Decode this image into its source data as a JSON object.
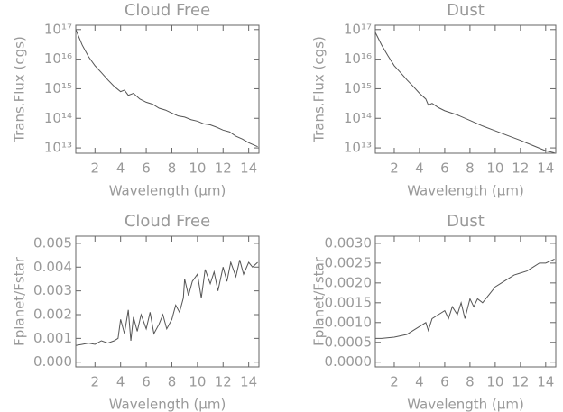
{
  "chart_data": [
    {
      "type": "line",
      "title": "Cloud Free",
      "x_label": "Wavelength (μm)",
      "y_label": "Trans.Flux (cgs)",
      "ylog": true,
      "color": "#555555",
      "xlim": [
        0.5,
        14.8
      ],
      "xticks": [
        2,
        4,
        6,
        8,
        10,
        12,
        14
      ],
      "ylim": [
        6600000000000.0,
        1.4e+17
      ],
      "yticks": [
        {
          "value": 10000000000000.0,
          "label": "10¹³"
        },
        {
          "value": 100000000000000.0,
          "label": "10¹⁴"
        },
        {
          "value": 1000000000000000.0,
          "label": "10¹⁵"
        },
        {
          "value": 1e+16,
          "label": "10¹⁶"
        },
        {
          "value": 1e+17,
          "label": "10¹⁷"
        }
      ],
      "x": [
        0.5,
        1,
        1.5,
        2,
        2.5,
        3,
        3.5,
        4,
        4.3,
        4.6,
        5,
        5.5,
        6,
        6.5,
        7,
        7.5,
        8,
        8.5,
        9,
        9.5,
        10,
        10.5,
        11,
        11.5,
        12,
        12.5,
        13,
        13.5,
        14,
        14.7
      ],
      "values": [
        1e+17,
        3e+16,
        1.2e+16,
        6000000000000000.0,
        3500000000000000.0,
        2000000000000000.0,
        1200000000000000.0,
        800000000000000.0,
        900000000000000.0,
        600000000000000.0,
        700000000000000.0,
        450000000000000.0,
        350000000000000.0,
        300000000000000.0,
        220000000000000.0,
        190000000000000.0,
        150000000000000.0,
        120000000000000.0,
        110000000000000.0,
        90000000000000.0,
        80000000000000.0,
        65000000000000.0,
        60000000000000.0,
        50000000000000.0,
        40000000000000.0,
        35000000000000.0,
        25000000000000.0,
        20000000000000.0,
        15000000000000.0,
        11000000000000.0
      ]
    },
    {
      "type": "line",
      "title": "Dust",
      "x_label": "Wavelength (μm)",
      "y_label": "Trans.Flux (cgs)",
      "ylog": true,
      "color": "#555555",
      "xlim": [
        0.5,
        14.8
      ],
      "xticks": [
        2,
        4,
        6,
        8,
        10,
        12,
        14
      ],
      "ylim": [
        6600000000000.0,
        1.4e+17
      ],
      "yticks": [
        {
          "value": 10000000000000.0,
          "label": "10¹³"
        },
        {
          "value": 100000000000000.0,
          "label": "10¹⁴"
        },
        {
          "value": 1000000000000000.0,
          "label": "10¹⁵"
        },
        {
          "value": 1e+16,
          "label": "10¹⁶"
        },
        {
          "value": 1e+17,
          "label": "10¹⁷"
        }
      ],
      "x": [
        0.5,
        1,
        1.5,
        2,
        2.5,
        3,
        3.5,
        4,
        4.5,
        4.7,
        5,
        5.5,
        6,
        7,
        8,
        9,
        10,
        11,
        12,
        13,
        14,
        14.7
      ],
      "values": [
        8e+16,
        3e+16,
        1.3e+16,
        6000000000000000.0,
        3500000000000000.0,
        2000000000000000.0,
        1200000000000000.0,
        700000000000000.0,
        450000000000000.0,
        280000000000000.0,
        320000000000000.0,
        230000000000000.0,
        180000000000000.0,
        130000000000000.0,
        85000000000000.0,
        55000000000000.0,
        38000000000000.0,
        26000000000000.0,
        18000000000000.0,
        12000000000000.0,
        8000000000000.0,
        6800000000000.0
      ]
    },
    {
      "type": "line",
      "title": "Cloud Free",
      "x_label": "Wavelength (μm)",
      "y_label": "Fplanet/Fstar",
      "ylog": false,
      "color": "#555555",
      "xlim": [
        0.5,
        14.8
      ],
      "xticks": [
        2,
        4,
        6,
        8,
        10,
        12,
        14
      ],
      "ylim": [
        -0.0002,
        0.0053
      ],
      "yticks": [
        {
          "value": 0,
          "label": "0.000"
        },
        0.001,
        0.002,
        0.003,
        0.004,
        0.005
      ],
      "x": [
        0.5,
        1,
        1.5,
        2,
        2.5,
        3,
        3.5,
        3.8,
        4,
        4.3,
        4.6,
        4.8,
        5,
        5.3,
        5.6,
        6,
        6.3,
        6.6,
        7,
        7.3,
        7.6,
        8,
        8.3,
        8.6,
        8.9,
        9,
        9.3,
        9.6,
        10,
        10.3,
        10.6,
        11,
        11.3,
        11.6,
        12,
        12.3,
        12.6,
        13,
        13.3,
        13.6,
        14,
        14.3,
        14.7
      ],
      "values": [
        0.0007,
        0.00075,
        0.0008,
        0.00075,
        0.0009,
        0.0008,
        0.0009,
        0.001,
        0.0018,
        0.0012,
        0.0022,
        0.0009,
        0.0019,
        0.0013,
        0.002,
        0.0014,
        0.0021,
        0.0012,
        0.0016,
        0.002,
        0.0014,
        0.0018,
        0.0024,
        0.0021,
        0.0027,
        0.0035,
        0.0028,
        0.0034,
        0.0037,
        0.0027,
        0.0039,
        0.0033,
        0.0038,
        0.003,
        0.004,
        0.0034,
        0.0042,
        0.0036,
        0.0043,
        0.0037,
        0.0042,
        0.004,
        0.0042
      ]
    },
    {
      "type": "line",
      "title": "Dust",
      "x_label": "Wavelength (μm)",
      "y_label": "Fplanet/Fstar",
      "ylog": false,
      "color": "#555555",
      "xlim": [
        0.5,
        14.8
      ],
      "xticks": [
        2,
        4,
        6,
        8,
        10,
        12,
        14
      ],
      "ylim": [
        -0.00012,
        0.00318
      ],
      "yticks": [
        {
          "value": 0,
          "label": "0.0000"
        },
        0.0005,
        {
          "value": 0.001,
          "label": "0.0010"
        },
        0.0015,
        {
          "value": 0.002,
          "label": "0.0020"
        },
        0.0025,
        {
          "value": 0.003,
          "label": "0.0030"
        }
      ],
      "x": [
        0.5,
        1,
        2,
        3,
        3.5,
        4,
        4.5,
        4.7,
        5,
        5.5,
        6,
        6.3,
        6.6,
        7,
        7.3,
        7.6,
        8,
        8.3,
        8.6,
        9,
        9.5,
        10,
        10.5,
        11,
        11.5,
        12,
        12.5,
        13,
        13.5,
        14,
        14.7
      ],
      "values": [
        0.0006,
        0.0006,
        0.00063,
        0.0007,
        0.0008,
        0.0009,
        0.001,
        0.0008,
        0.0011,
        0.0012,
        0.0013,
        0.0011,
        0.0014,
        0.0012,
        0.0015,
        0.0011,
        0.0016,
        0.0014,
        0.0016,
        0.0015,
        0.0017,
        0.0019,
        0.002,
        0.0021,
        0.0022,
        0.00225,
        0.0023,
        0.0024,
        0.0025,
        0.0025,
        0.0026
      ]
    }
  ]
}
